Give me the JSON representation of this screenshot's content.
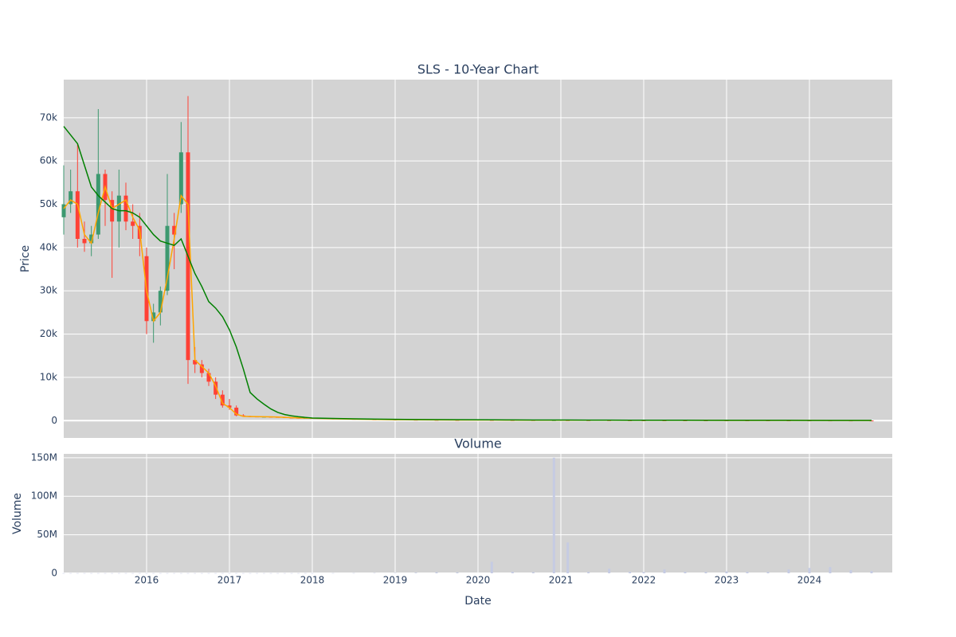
{
  "chart_data": [
    {
      "type": "candlestick",
      "title": "SLS - 10-Year Chart",
      "ylabel": "Price",
      "x": [
        "2015-01",
        "2015-02",
        "2015-03",
        "2015-04",
        "2015-05",
        "2015-06",
        "2015-07",
        "2015-08",
        "2015-09",
        "2015-10",
        "2015-11",
        "2015-12",
        "2016-01",
        "2016-02",
        "2016-03",
        "2016-04",
        "2016-05",
        "2016-06",
        "2016-07",
        "2016-08",
        "2016-09",
        "2016-10",
        "2016-11",
        "2016-12",
        "2017-01",
        "2017-02",
        "2017-03",
        "2017-04",
        "2017-05",
        "2017-06",
        "2017-07",
        "2017-08",
        "2017-09",
        "2017-10",
        "2017-11",
        "2017-12",
        "2018-01",
        "2018-04",
        "2018-07",
        "2018-10",
        "2019-01",
        "2019-04",
        "2019-07",
        "2019-10",
        "2020-03",
        "2020-06",
        "2020-09",
        "2020-12",
        "2021-02",
        "2021-05",
        "2021-08",
        "2021-11",
        "2022-01",
        "2022-04",
        "2022-07",
        "2022-10",
        "2023-01",
        "2023-04",
        "2023-07",
        "2023-10",
        "2024-01",
        "2024-04",
        "2024-07",
        "2024-10"
      ],
      "open": [
        47000,
        50000,
        53000,
        42000,
        41000,
        43000,
        57000,
        51000,
        46000,
        52000,
        46000,
        45000,
        38000,
        23000,
        25000,
        30000,
        45000,
        50000,
        62000,
        14000,
        13000,
        11000,
        9000,
        6000,
        3500,
        3000,
        1200,
        1000,
        950,
        900,
        900,
        850,
        800,
        700,
        650,
        600,
        600,
        500,
        400,
        300,
        250,
        200,
        180,
        150,
        140,
        120,
        110,
        100,
        100,
        95,
        90,
        85,
        80,
        75,
        70,
        65,
        60,
        55,
        50,
        45,
        40,
        35,
        30,
        25
      ],
      "high": [
        59000,
        58000,
        64000,
        46000,
        45000,
        72000,
        58000,
        53000,
        58000,
        55000,
        50000,
        48000,
        40000,
        27000,
        31000,
        57000,
        48000,
        69000,
        75000,
        17000,
        14000,
        12000,
        10000,
        7000,
        5000,
        3500,
        1500,
        1100,
        1000,
        950,
        950,
        900,
        850,
        750,
        700,
        650,
        700,
        550,
        450,
        350,
        300,
        250,
        200,
        170,
        160,
        140,
        130,
        120,
        115,
        110,
        100,
        95,
        90,
        85,
        80,
        75,
        70,
        65,
        60,
        55,
        50,
        45,
        40,
        35
      ],
      "low": [
        43000,
        48000,
        40000,
        39000,
        38000,
        42000,
        45000,
        33000,
        40000,
        44000,
        42000,
        38000,
        20000,
        18000,
        22000,
        29000,
        35000,
        48000,
        8500,
        11000,
        10000,
        8000,
        5000,
        3000,
        2500,
        1000,
        900,
        850,
        800,
        800,
        750,
        700,
        600,
        550,
        500,
        450,
        400,
        300,
        250,
        200,
        150,
        130,
        120,
        100,
        90,
        80,
        70,
        65,
        60,
        55,
        50,
        45,
        40,
        38,
        35,
        30,
        28,
        25,
        22,
        20,
        18,
        15,
        12,
        10
      ],
      "close": [
        50000,
        53000,
        42000,
        41000,
        43000,
        57000,
        51000,
        46000,
        52000,
        46000,
        45000,
        42000,
        23000,
        25000,
        30000,
        45000,
        43000,
        62000,
        14000,
        13000,
        11000,
        9000,
        6000,
        3500,
        3000,
        1200,
        1000,
        950,
        900,
        900,
        850,
        800,
        700,
        650,
        600,
        600,
        500,
        400,
        300,
        250,
        200,
        180,
        150,
        140,
        120,
        110,
        100,
        100,
        95,
        90,
        85,
        80,
        75,
        70,
        65,
        60,
        55,
        50,
        45,
        40,
        35,
        30,
        25,
        20
      ],
      "increasing_color": "#3D9970",
      "decreasing_color": "#FF4136",
      "lines": [
        {
          "color": "orange",
          "values": [
            49000,
            51000,
            50000,
            43000,
            41000,
            48000,
            54000,
            49000,
            50000,
            51000,
            47000,
            44000,
            30000,
            23000,
            25000,
            33000,
            42000,
            52000,
            50000,
            14000,
            12500,
            11000,
            8000,
            4000,
            3000,
            1500,
            1000,
            950,
            920,
            900,
            880,
            830,
            760,
            690,
            630,
            600,
            550,
            450,
            350,
            280,
            220,
            190,
            160,
            145,
            130,
            115,
            105,
            100,
            97,
            92,
            87,
            82,
            77,
            72,
            67,
            62,
            57,
            52,
            47,
            42,
            37,
            32,
            27,
            22
          ]
        },
        {
          "color": "green",
          "values": [
            68000,
            66000,
            64000,
            59000,
            54000,
            52000,
            50500,
            49000,
            48500,
            48500,
            48000,
            47000,
            45000,
            43000,
            41500,
            41000,
            40500,
            42000,
            38000,
            34000,
            31000,
            27500,
            26000,
            24000,
            21000,
            17000,
            12000,
            6500,
            5000,
            3800,
            2700,
            1900,
            1400,
            1100,
            900,
            750,
            600,
            500,
            420,
            350,
            300,
            260,
            230,
            200,
            180,
            160,
            150,
            140,
            130,
            120,
            110,
            100,
            95,
            90,
            85,
            80,
            75,
            70,
            65,
            60,
            55,
            50,
            45,
            40
          ]
        }
      ],
      "xlim": [
        "2015-01",
        "2025-01"
      ],
      "xticks": [
        "2016-01",
        "2017-01",
        "2018-01",
        "2019-01",
        "2020-01",
        "2021-01",
        "2022-01",
        "2023-01",
        "2024-01"
      ],
      "ylim": [
        -4000,
        78800
      ],
      "yticks": [
        0,
        {
          "value": 10000,
          "label": "10k"
        },
        {
          "value": 20000,
          "label": "20k"
        },
        {
          "value": 30000,
          "label": "30k"
        },
        {
          "value": 40000,
          "label": "40k"
        },
        {
          "value": 50000,
          "label": "50k"
        },
        {
          "value": 60000,
          "label": "60k"
        },
        {
          "value": 70000,
          "label": "70k"
        }
      ],
      "grid": true
    },
    {
      "type": "bar",
      "title": "Volume",
      "ylabel": "Volume",
      "xlabel": "Date",
      "x": [
        "2015-01",
        "2015-02",
        "2015-03",
        "2015-04",
        "2015-05",
        "2015-06",
        "2015-07",
        "2015-08",
        "2015-09",
        "2015-10",
        "2015-11",
        "2015-12",
        "2016-01",
        "2016-02",
        "2016-03",
        "2016-04",
        "2016-05",
        "2016-06",
        "2016-07",
        "2016-08",
        "2016-09",
        "2016-10",
        "2016-11",
        "2016-12",
        "2017-01",
        "2017-02",
        "2017-03",
        "2017-04",
        "2017-05",
        "2017-06",
        "2017-07",
        "2017-08",
        "2017-09",
        "2017-10",
        "2017-11",
        "2017-12",
        "2018-01",
        "2018-04",
        "2018-07",
        "2018-10",
        "2019-01",
        "2019-04",
        "2019-07",
        "2019-10",
        "2020-03",
        "2020-06",
        "2020-09",
        "2020-12",
        "2021-02",
        "2021-05",
        "2021-08",
        "2021-11",
        "2022-01",
        "2022-04",
        "2022-07",
        "2022-10",
        "2023-01",
        "2023-04",
        "2023-07",
        "2023-10",
        "2024-01",
        "2024-04",
        "2024-07",
        "2024-10"
      ],
      "values": [
        200000,
        200000,
        200000,
        200000,
        200000,
        200000,
        200000,
        200000,
        200000,
        200000,
        200000,
        200000,
        200000,
        200000,
        200000,
        200000,
        200000,
        200000,
        200000,
        200000,
        200000,
        200000,
        200000,
        200000,
        200000,
        200000,
        200000,
        200000,
        200000,
        200000,
        200000,
        200000,
        200000,
        200000,
        200000,
        200000,
        200000,
        250000,
        300000,
        400000,
        500000,
        800000,
        1500000,
        1200000,
        15000000,
        2000000,
        1500000,
        150000000,
        40000000,
        1800000,
        6000000,
        2000000,
        1500000,
        5000000,
        2000000,
        1800000,
        2500000,
        2000000,
        1800000,
        5000000,
        7000000,
        8000000,
        4000000,
        3000000
      ],
      "color": "#c5cbe3",
      "xlim": [
        "2015-01",
        "2025-01"
      ],
      "xticks": [
        {
          "value": "2016-01",
          "label": "2016"
        },
        {
          "value": "2017-01",
          "label": "2017"
        },
        {
          "value": "2018-01",
          "label": "2018"
        },
        {
          "value": "2019-01",
          "label": "2019"
        },
        {
          "value": "2020-01",
          "label": "2020"
        },
        {
          "value": "2021-01",
          "label": "2021"
        },
        {
          "value": "2022-01",
          "label": "2022"
        },
        {
          "value": "2023-01",
          "label": "2023"
        },
        {
          "value": "2024-01",
          "label": "2024"
        }
      ],
      "ylim": [
        0,
        155000000
      ],
      "yticks": [
        0,
        {
          "value": 50000000,
          "label": "50M"
        },
        {
          "value": 100000000,
          "label": "100M"
        },
        {
          "value": 150000000,
          "label": "150M"
        }
      ],
      "grid": true
    }
  ]
}
